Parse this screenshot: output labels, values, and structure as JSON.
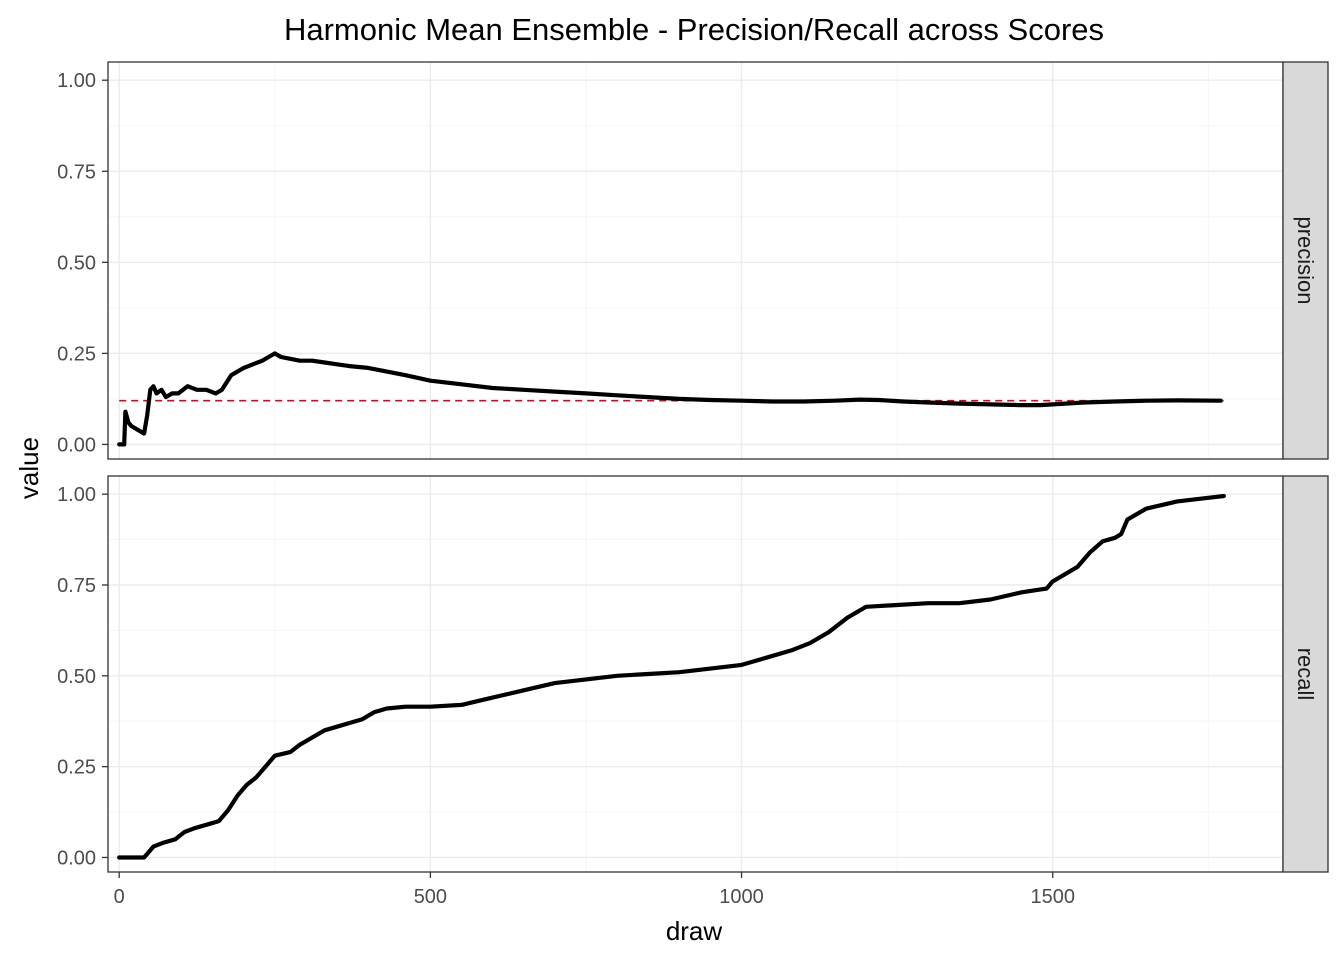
{
  "chart_data": {
    "type": "line",
    "title": "Harmonic Mean Ensemble - Precision/Recall across Scores",
    "xlabel": "draw",
    "ylabel": "value",
    "xlim": [
      -18,
      1870
    ],
    "ylim": [
      -0.04,
      1.05
    ],
    "x_ticks": [
      0,
      500,
      1000,
      1500
    ],
    "x_tick_labels": [
      "0",
      "500",
      "1000",
      "1500"
    ],
    "y_ticks": [
      0,
      0.25,
      0.5,
      0.75,
      1
    ],
    "y_tick_labels": [
      "0.00",
      "0.25",
      "0.50",
      "0.75",
      "1.00"
    ],
    "grid": true,
    "legend": "none",
    "facet_strip_position": "right",
    "facets": [
      {
        "label": "precision",
        "reference_line": {
          "y": 0.12,
          "style": "dashed",
          "color": "#b2182b"
        },
        "series": [
          {
            "x": [
              0,
              8,
              10,
              15,
              20,
              30,
              40,
              45,
              50,
              55,
              60,
              68,
              75,
              85,
              95,
              110,
              125,
              140,
              155,
              165,
              180,
              200,
              215,
              230,
              240,
              250,
              260,
              275,
              290,
              310,
              330,
              350,
              370,
              400,
              430,
              460,
              500,
              550,
              600,
              650,
              700,
              750,
              800,
              850,
              900,
              950,
              1000,
              1050,
              1100,
              1150,
              1190,
              1220,
              1260,
              1300,
              1350,
              1400,
              1450,
              1480,
              1500,
              1550,
              1600,
              1650,
              1700,
              1770
            ],
            "values": [
              0.0,
              0.0,
              0.09,
              0.06,
              0.05,
              0.04,
              0.03,
              0.08,
              0.15,
              0.16,
              0.14,
              0.15,
              0.13,
              0.14,
              0.14,
              0.16,
              0.15,
              0.15,
              0.14,
              0.15,
              0.19,
              0.21,
              0.22,
              0.23,
              0.24,
              0.25,
              0.24,
              0.235,
              0.23,
              0.23,
              0.225,
              0.22,
              0.215,
              0.21,
              0.2,
              0.19,
              0.175,
              0.165,
              0.155,
              0.15,
              0.145,
              0.14,
              0.135,
              0.13,
              0.125,
              0.122,
              0.12,
              0.118,
              0.118,
              0.12,
              0.123,
              0.122,
              0.118,
              0.115,
              0.112,
              0.11,
              0.108,
              0.108,
              0.11,
              0.115,
              0.118,
              0.12,
              0.121,
              0.12
            ]
          }
        ]
      },
      {
        "label": "recall",
        "series": [
          {
            "x": [
              0,
              20,
              40,
              55,
              70,
              90,
              105,
              120,
              140,
              160,
              175,
              190,
              205,
              220,
              235,
              250,
              275,
              290,
              310,
              330,
              350,
              370,
              390,
              410,
              430,
              460,
              500,
              550,
              600,
              650,
              700,
              750,
              800,
              850,
              900,
              950,
              1000,
              1040,
              1080,
              1110,
              1140,
              1170,
              1200,
              1250,
              1300,
              1350,
              1400,
              1450,
              1490,
              1500,
              1540,
              1560,
              1580,
              1600,
              1610,
              1620,
              1650,
              1700,
              1750,
              1775
            ],
            "values": [
              0.0,
              0.0,
              0.0,
              0.03,
              0.04,
              0.05,
              0.07,
              0.08,
              0.09,
              0.1,
              0.13,
              0.17,
              0.2,
              0.22,
              0.25,
              0.28,
              0.29,
              0.31,
              0.33,
              0.35,
              0.36,
              0.37,
              0.38,
              0.4,
              0.41,
              0.415,
              0.415,
              0.42,
              0.44,
              0.46,
              0.48,
              0.49,
              0.5,
              0.505,
              0.51,
              0.52,
              0.53,
              0.55,
              0.57,
              0.59,
              0.62,
              0.66,
              0.69,
              0.695,
              0.7,
              0.7,
              0.71,
              0.73,
              0.74,
              0.76,
              0.8,
              0.84,
              0.87,
              0.88,
              0.89,
              0.93,
              0.96,
              0.98,
              0.99,
              0.995
            ]
          }
        ]
      }
    ]
  }
}
